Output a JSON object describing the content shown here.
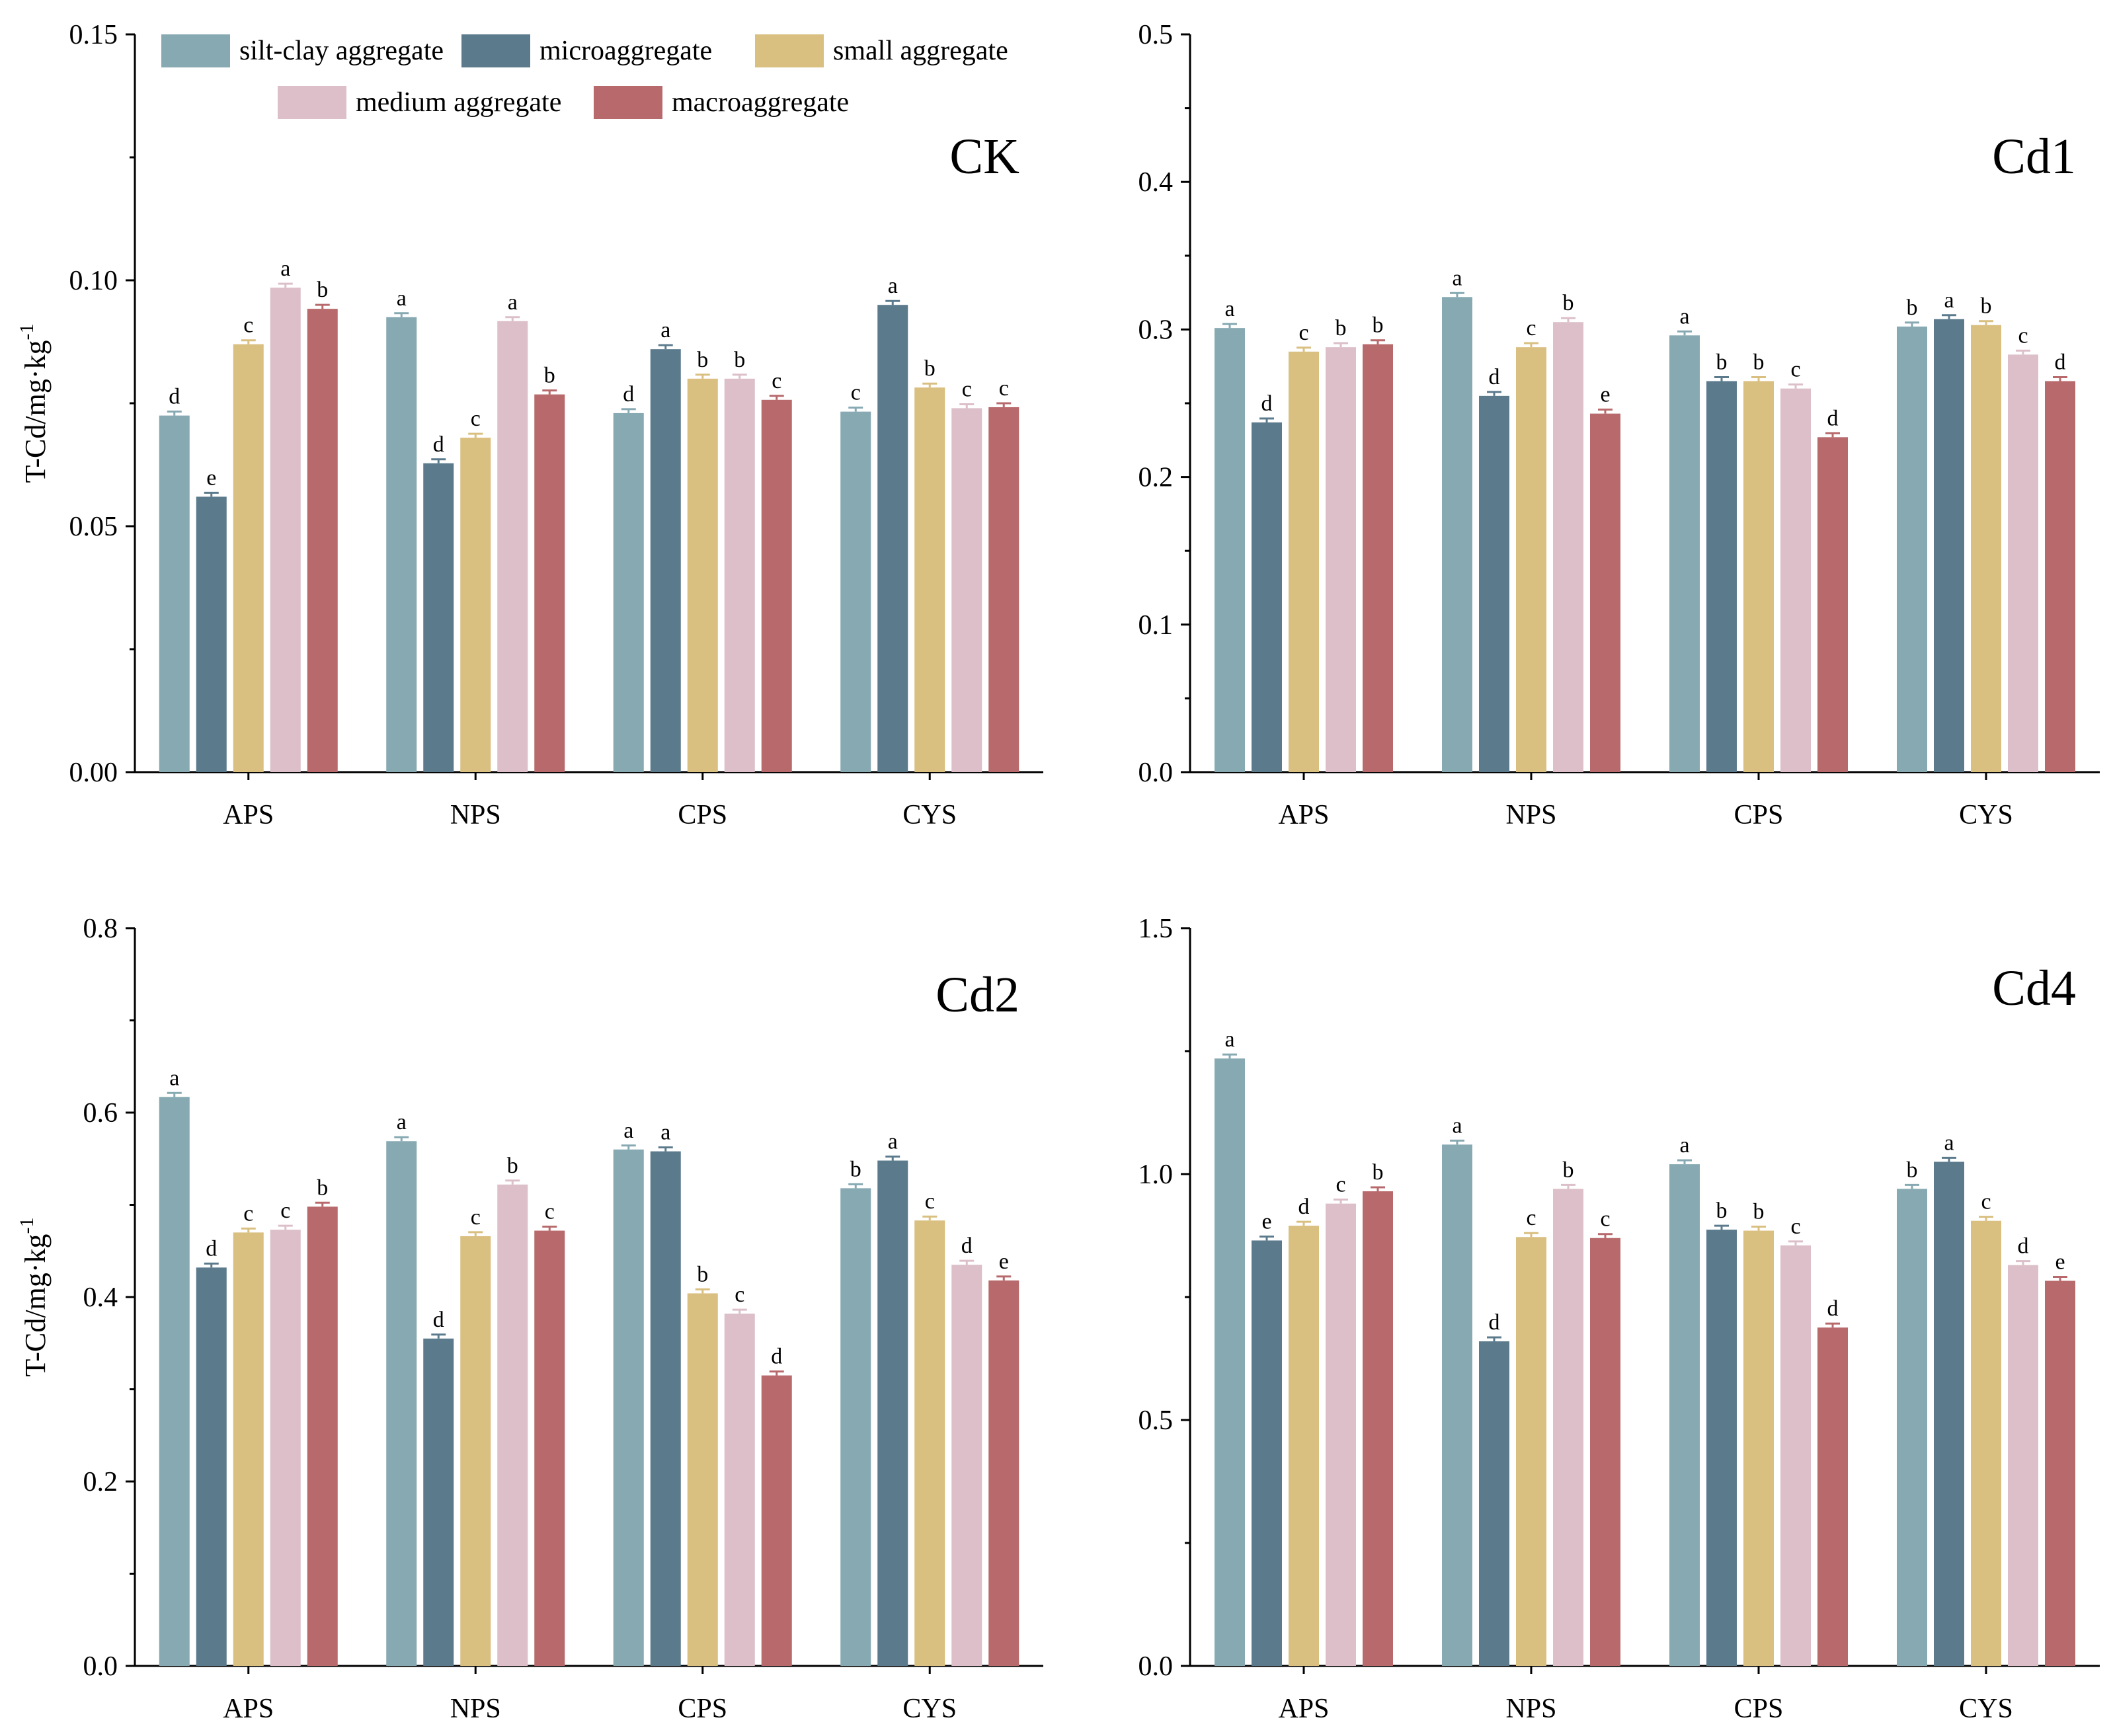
{
  "figure": {
    "ylabel": "T-Cd/mg·kg",
    "ylabel_sup": "-1",
    "categories": [
      "APS",
      "NPS",
      "CPS",
      "CYS"
    ]
  },
  "legend": {
    "items": [
      {
        "label": "silt-clay aggregate",
        "color": "#86a9b2"
      },
      {
        "label": "microaggregate",
        "color": "#5b7b8d"
      },
      {
        "label": "small aggregate",
        "color": "#d9bf80"
      },
      {
        "label": "medium aggregate",
        "color": "#dcbfc8"
      },
      {
        "label": "macroaggregate",
        "color": "#b8696b"
      }
    ]
  },
  "chart_data": [
    {
      "type": "bar",
      "title": "CK",
      "categories": [
        "APS",
        "NPS",
        "CPS",
        "CYS"
      ],
      "ylim": [
        0,
        0.15
      ],
      "yticks": [
        "0.00",
        "0.05",
        "0.10",
        "0.15"
      ],
      "ytick_values": [
        0,
        0.05,
        0.1,
        0.15
      ],
      "ylabel": "T-Cd/mg·kg-1",
      "series": [
        {
          "name": "silt-clay aggregate",
          "values": [
            0.0725,
            0.0925,
            0.073,
            0.0733
          ],
          "letters": [
            "d",
            "a",
            "d",
            "c"
          ]
        },
        {
          "name": "microaggregate",
          "values": [
            0.056,
            0.0628,
            0.086,
            0.095
          ],
          "letters": [
            "e",
            "d",
            "a",
            "a"
          ]
        },
        {
          "name": "small aggregate",
          "values": [
            0.087,
            0.068,
            0.08,
            0.0782
          ],
          "letters": [
            "c",
            "c",
            "b",
            "b"
          ]
        },
        {
          "name": "medium aggregate",
          "values": [
            0.0985,
            0.0917,
            0.08,
            0.074
          ],
          "letters": [
            "a",
            "a",
            "b",
            "c"
          ]
        },
        {
          "name": "macroaggregate",
          "values": [
            0.0942,
            0.0768,
            0.0757,
            0.0742
          ],
          "letters": [
            "b",
            "b",
            "c",
            "c"
          ]
        }
      ]
    },
    {
      "type": "bar",
      "title": "Cd1",
      "categories": [
        "APS",
        "NPS",
        "CPS",
        "CYS"
      ],
      "ylim": [
        0,
        0.5
      ],
      "yticks": [
        "0.0",
        "0.1",
        "0.2",
        "0.3",
        "0.4",
        "0.5"
      ],
      "ytick_values": [
        0,
        0.1,
        0.2,
        0.3,
        0.4,
        0.5
      ],
      "ylabel": "",
      "series": [
        {
          "name": "silt-clay aggregate",
          "values": [
            0.301,
            0.322,
            0.296,
            0.302
          ],
          "letters": [
            "a",
            "a",
            "a",
            "b"
          ]
        },
        {
          "name": "microaggregate",
          "values": [
            0.237,
            0.255,
            0.265,
            0.307
          ],
          "letters": [
            "d",
            "d",
            "b",
            "a"
          ]
        },
        {
          "name": "small aggregate",
          "values": [
            0.285,
            0.288,
            0.265,
            0.303
          ],
          "letters": [
            "c",
            "c",
            "b",
            "b"
          ]
        },
        {
          "name": "medium aggregate",
          "values": [
            0.288,
            0.305,
            0.26,
            0.283
          ],
          "letters": [
            "b",
            "b",
            "c",
            "c"
          ]
        },
        {
          "name": "macroaggregate",
          "values": [
            0.29,
            0.243,
            0.227,
            0.265
          ],
          "letters": [
            "b",
            "e",
            "d",
            "d"
          ]
        }
      ]
    },
    {
      "type": "bar",
      "title": "Cd2",
      "categories": [
        "APS",
        "NPS",
        "CPS",
        "CYS"
      ],
      "ylim": [
        0,
        0.8
      ],
      "yticks": [
        "0.0",
        "0.2",
        "0.4",
        "0.6",
        "0.8"
      ],
      "ytick_values": [
        0,
        0.2,
        0.4,
        0.6,
        0.8
      ],
      "ylabel": "T-Cd/mg·kg-1",
      "series": [
        {
          "name": "silt-clay aggregate",
          "values": [
            0.617,
            0.569,
            0.56,
            0.518
          ],
          "letters": [
            "a",
            "a",
            "a",
            "b"
          ]
        },
        {
          "name": "microaggregate",
          "values": [
            0.432,
            0.355,
            0.558,
            0.548
          ],
          "letters": [
            "d",
            "d",
            "a",
            "a"
          ]
        },
        {
          "name": "small aggregate",
          "values": [
            0.47,
            0.466,
            0.404,
            0.483
          ],
          "letters": [
            "c",
            "c",
            "b",
            "c"
          ]
        },
        {
          "name": "medium aggregate",
          "values": [
            0.473,
            0.522,
            0.382,
            0.435
          ],
          "letters": [
            "c",
            "b",
            "c",
            "d"
          ]
        },
        {
          "name": "macroaggregate",
          "values": [
            0.498,
            0.472,
            0.315,
            0.418
          ],
          "letters": [
            "b",
            "c",
            "d",
            "e"
          ]
        }
      ]
    },
    {
      "type": "bar",
      "title": "Cd4",
      "categories": [
        "APS",
        "NPS",
        "CPS",
        "CYS"
      ],
      "ylim": [
        0,
        1.5
      ],
      "yticks": [
        "0.0",
        "0.5",
        "1.0",
        "1.5"
      ],
      "ytick_values": [
        0,
        0.5,
        1.0,
        1.5
      ],
      "ylabel": "",
      "series": [
        {
          "name": "silt-clay aggregate",
          "values": [
            1.235,
            1.06,
            1.02,
            0.97
          ],
          "letters": [
            "a",
            "a",
            "a",
            "b"
          ]
        },
        {
          "name": "microaggregate",
          "values": [
            0.865,
            0.66,
            0.887,
            1.025
          ],
          "letters": [
            "e",
            "d",
            "b",
            "a"
          ]
        },
        {
          "name": "small aggregate",
          "values": [
            0.895,
            0.872,
            0.885,
            0.905
          ],
          "letters": [
            "d",
            "c",
            "b",
            "c"
          ]
        },
        {
          "name": "medium aggregate",
          "values": [
            0.94,
            0.97,
            0.855,
            0.815
          ],
          "letters": [
            "c",
            "b",
            "c",
            "d"
          ]
        },
        {
          "name": "macroaggregate",
          "values": [
            0.965,
            0.87,
            0.688,
            0.783
          ],
          "letters": [
            "b",
            "c",
            "d",
            "e"
          ]
        }
      ]
    }
  ]
}
